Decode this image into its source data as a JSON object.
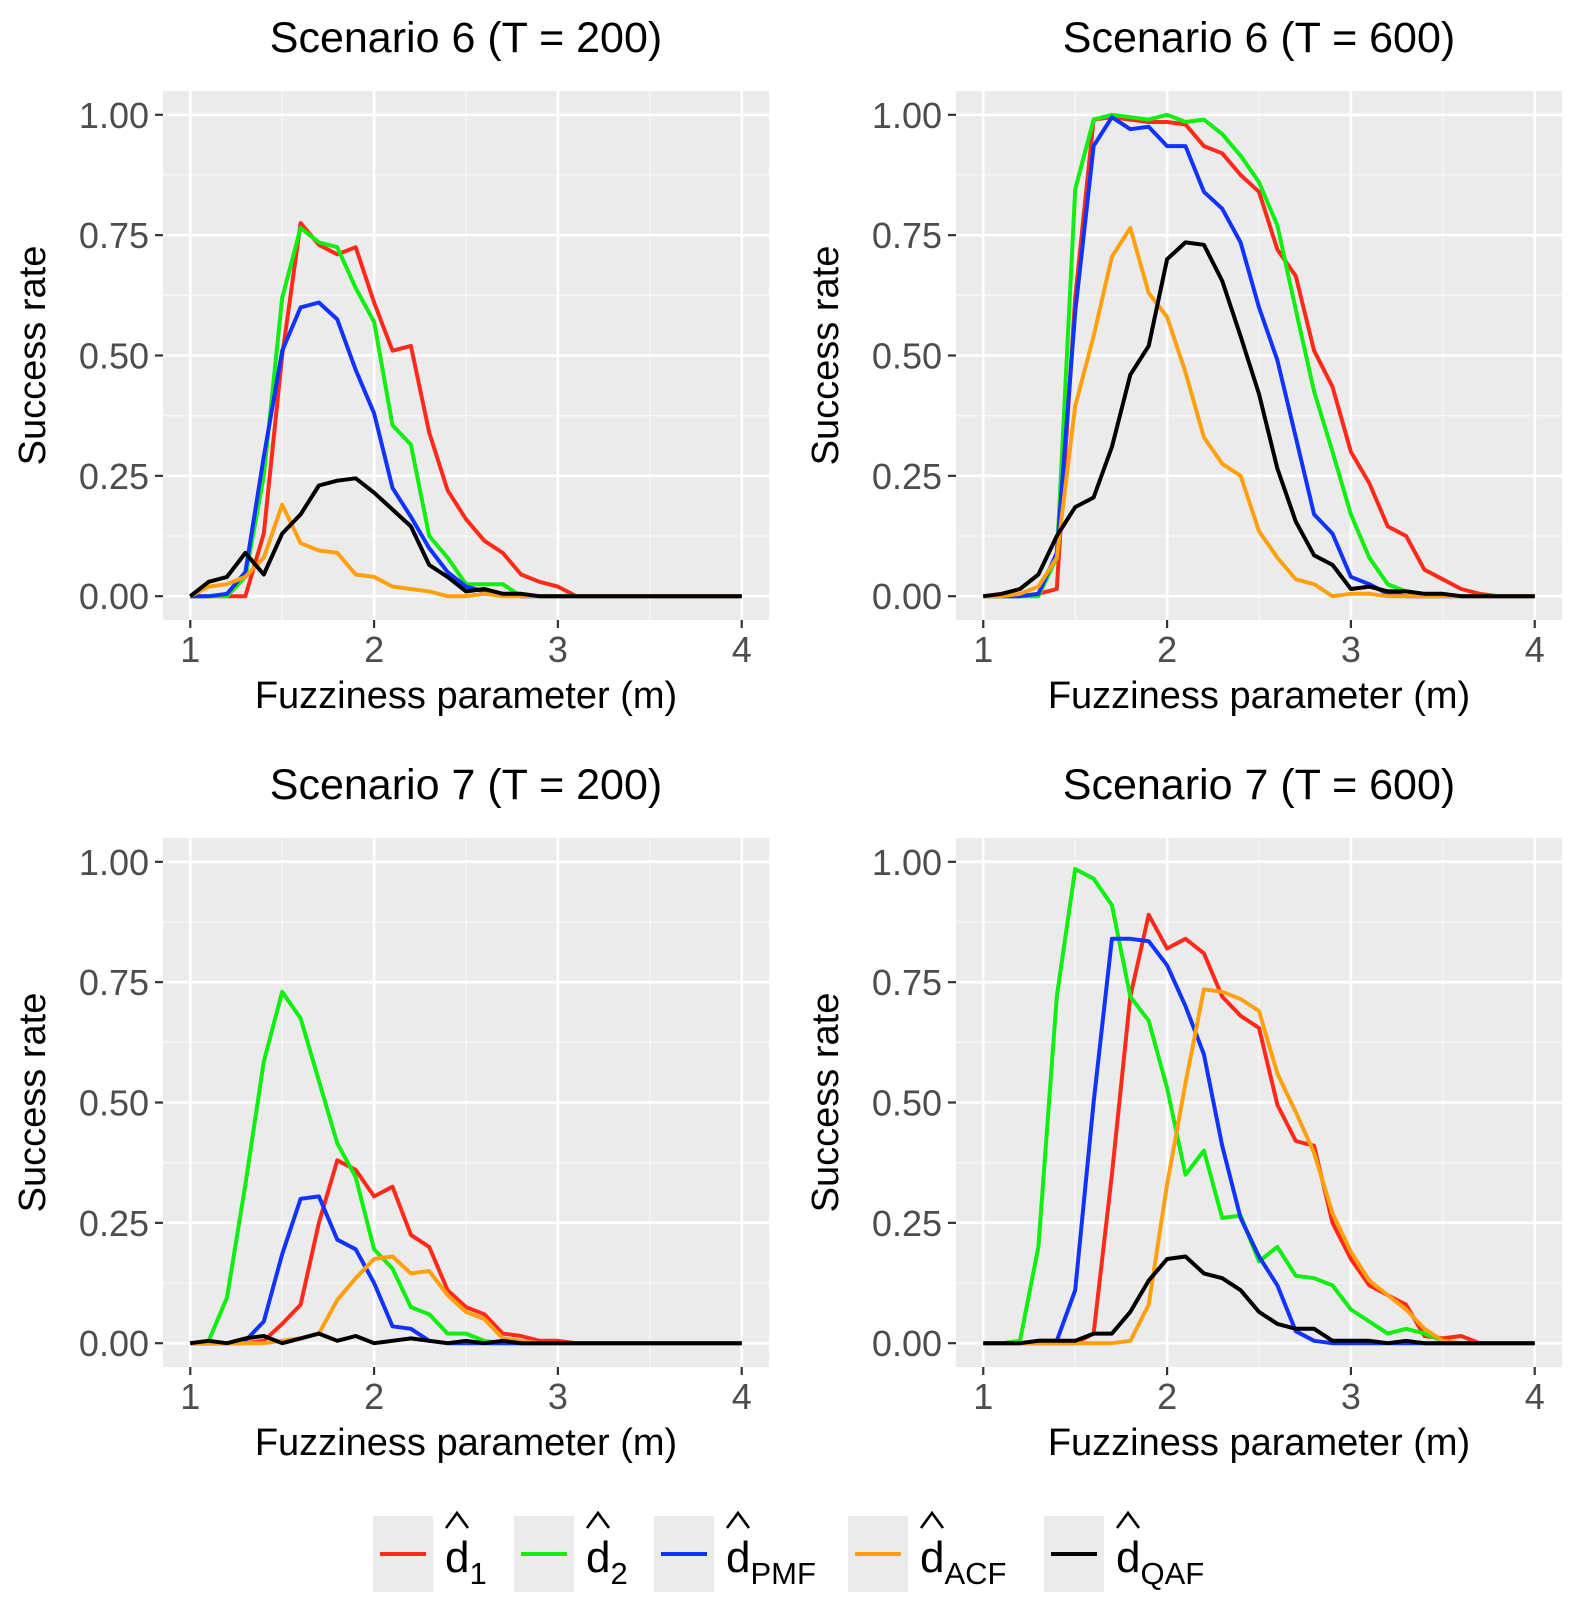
{
  "legend": {
    "entries": [
      {
        "key": "d1",
        "base": "d",
        "sub": "1",
        "color": "#FF2A1A"
      },
      {
        "key": "d2",
        "base": "d",
        "sub": "2",
        "color": "#11EE11"
      },
      {
        "key": "dPMF",
        "base": "d",
        "sub": "PMF",
        "color": "#1133FF"
      },
      {
        "key": "dACF",
        "base": "d",
        "sub": "ACF",
        "color": "#FFA010"
      },
      {
        "key": "dQAF",
        "base": "d",
        "sub": "QAF",
        "color": "#000000"
      }
    ]
  },
  "chart_data": [
    {
      "type": "line",
      "title": "Scenario 6 (T = 200)",
      "xlabel": "Fuzziness parameter (m)",
      "ylabel": "Success rate",
      "xlim": [
        1,
        4
      ],
      "ylim": [
        0,
        1
      ],
      "xticks": [
        "1",
        "2",
        "3",
        "4"
      ],
      "yticks": [
        "0.00",
        "0.25",
        "0.50",
        "0.75",
        "1.00"
      ],
      "x": [
        1.0,
        1.1,
        1.2,
        1.3,
        1.4,
        1.5,
        1.6,
        1.7,
        1.8,
        1.9,
        2.0,
        2.1,
        2.2,
        2.3,
        2.4,
        2.5,
        2.6,
        2.7,
        2.8,
        2.9,
        3.0,
        3.1,
        3.2,
        3.3,
        3.4,
        3.5,
        3.6,
        3.7,
        3.8,
        3.9,
        4.0
      ],
      "series": [
        {
          "name": "d1",
          "values": [
            0,
            0,
            0,
            0,
            0.13,
            0.5,
            0.775,
            0.73,
            0.71,
            0.725,
            0.61,
            0.51,
            0.52,
            0.34,
            0.22,
            0.16,
            0.115,
            0.09,
            0.045,
            0.03,
            0.02,
            0,
            0,
            0,
            0,
            0,
            0,
            0,
            0,
            0,
            0
          ]
        },
        {
          "name": "d2",
          "values": [
            0,
            0,
            0,
            0.04,
            0.25,
            0.62,
            0.765,
            0.735,
            0.725,
            0.64,
            0.57,
            0.355,
            0.315,
            0.125,
            0.08,
            0.025,
            0.025,
            0.025,
            0,
            0,
            0,
            0,
            0,
            0,
            0,
            0,
            0,
            0,
            0,
            0,
            0
          ]
        },
        {
          "name": "dPMF",
          "values": [
            0,
            0,
            0.005,
            0.05,
            0.29,
            0.51,
            0.6,
            0.61,
            0.575,
            0.47,
            0.38,
            0.225,
            0.165,
            0.1,
            0.05,
            0.02,
            0.01,
            0.005,
            0,
            0,
            0,
            0,
            0,
            0,
            0,
            0,
            0,
            0,
            0,
            0,
            0
          ]
        },
        {
          "name": "dACF",
          "values": [
            0,
            0.02,
            0.025,
            0.04,
            0.08,
            0.19,
            0.11,
            0.095,
            0.09,
            0.045,
            0.04,
            0.02,
            0.015,
            0.01,
            0,
            0,
            0.005,
            0,
            0,
            0,
            0,
            0,
            0,
            0,
            0,
            0,
            0,
            0,
            0,
            0,
            0
          ]
        },
        {
          "name": "dQAF",
          "values": [
            0,
            0.03,
            0.04,
            0.09,
            0.045,
            0.13,
            0.17,
            0.23,
            0.24,
            0.245,
            0.215,
            0.18,
            0.145,
            0.065,
            0.04,
            0.01,
            0.015,
            0.005,
            0.005,
            0,
            0,
            0,
            0,
            0,
            0,
            0,
            0,
            0,
            0,
            0,
            0
          ]
        }
      ]
    },
    {
      "type": "line",
      "title": "Scenario 6 (T = 600)",
      "xlabel": "Fuzziness parameter (m)",
      "ylabel": "Success rate",
      "xlim": [
        1,
        4
      ],
      "ylim": [
        0,
        1
      ],
      "xticks": [
        "1",
        "2",
        "3",
        "4"
      ],
      "yticks": [
        "0.00",
        "0.25",
        "0.50",
        "0.75",
        "1.00"
      ],
      "x": [
        1.0,
        1.1,
        1.2,
        1.3,
        1.4,
        1.5,
        1.6,
        1.7,
        1.8,
        1.9,
        2.0,
        2.1,
        2.2,
        2.3,
        2.4,
        2.5,
        2.6,
        2.7,
        2.8,
        2.9,
        3.0,
        3.1,
        3.2,
        3.3,
        3.4,
        3.5,
        3.6,
        3.7,
        3.8,
        3.9,
        4.0
      ],
      "series": [
        {
          "name": "d1",
          "values": [
            0,
            0,
            0,
            0.005,
            0.015,
            0.62,
            0.99,
            0.995,
            0.99,
            0.985,
            0.985,
            0.98,
            0.935,
            0.92,
            0.875,
            0.84,
            0.72,
            0.665,
            0.51,
            0.435,
            0.3,
            0.235,
            0.145,
            0.125,
            0.055,
            0.035,
            0.015,
            0.005,
            0,
            0,
            0
          ]
        },
        {
          "name": "d2",
          "values": [
            0,
            0,
            0,
            0,
            0.08,
            0.845,
            0.99,
            1.0,
            0.995,
            0.99,
            1.0,
            0.985,
            0.99,
            0.96,
            0.915,
            0.86,
            0.77,
            0.595,
            0.425,
            0.3,
            0.17,
            0.08,
            0.025,
            0.01,
            0.005,
            0,
            0,
            0,
            0,
            0,
            0
          ]
        },
        {
          "name": "dPMF",
          "values": [
            0,
            0,
            0,
            0.005,
            0.09,
            0.59,
            0.935,
            0.995,
            0.97,
            0.975,
            0.935,
            0.935,
            0.84,
            0.805,
            0.735,
            0.6,
            0.49,
            0.33,
            0.17,
            0.13,
            0.04,
            0.025,
            0.005,
            0,
            0,
            0,
            0,
            0,
            0,
            0,
            0
          ]
        },
        {
          "name": "dACF",
          "values": [
            0,
            0,
            0.005,
            0.02,
            0.08,
            0.395,
            0.54,
            0.705,
            0.765,
            0.63,
            0.58,
            0.465,
            0.33,
            0.275,
            0.25,
            0.135,
            0.08,
            0.035,
            0.025,
            0,
            0.005,
            0.005,
            0,
            0,
            0,
            0,
            0,
            0,
            0,
            0,
            0
          ]
        },
        {
          "name": "dQAF",
          "values": [
            0,
            0.005,
            0.015,
            0.045,
            0.125,
            0.185,
            0.205,
            0.31,
            0.46,
            0.52,
            0.7,
            0.735,
            0.73,
            0.655,
            0.54,
            0.42,
            0.265,
            0.155,
            0.085,
            0.065,
            0.015,
            0.02,
            0.01,
            0.01,
            0.005,
            0.005,
            0,
            0,
            0,
            0,
            0
          ]
        }
      ]
    },
    {
      "type": "line",
      "title": "Scenario 7 (T = 200)",
      "xlabel": "Fuzziness parameter (m)",
      "ylabel": "Success rate",
      "xlim": [
        1,
        4
      ],
      "ylim": [
        0,
        1
      ],
      "xticks": [
        "1",
        "2",
        "3",
        "4"
      ],
      "yticks": [
        "0.00",
        "0.25",
        "0.50",
        "0.75",
        "1.00"
      ],
      "x": [
        1.0,
        1.1,
        1.2,
        1.3,
        1.4,
        1.5,
        1.6,
        1.7,
        1.8,
        1.9,
        2.0,
        2.1,
        2.2,
        2.3,
        2.4,
        2.5,
        2.6,
        2.7,
        2.8,
        2.9,
        3.0,
        3.1,
        3.2,
        3.3,
        3.4,
        3.5,
        3.6,
        3.7,
        3.8,
        3.9,
        4.0
      ],
      "series": [
        {
          "name": "d1",
          "values": [
            0,
            0,
            0,
            0,
            0.005,
            0.04,
            0.08,
            0.25,
            0.38,
            0.36,
            0.305,
            0.325,
            0.225,
            0.2,
            0.11,
            0.075,
            0.06,
            0.02,
            0.015,
            0.005,
            0.005,
            0,
            0,
            0,
            0,
            0,
            0,
            0,
            0,
            0,
            0
          ]
        },
        {
          "name": "d2",
          "values": [
            0,
            0.005,
            0.095,
            0.33,
            0.585,
            0.73,
            0.675,
            0.545,
            0.415,
            0.345,
            0.195,
            0.155,
            0.075,
            0.06,
            0.02,
            0.02,
            0.005,
            0,
            0,
            0,
            0,
            0,
            0,
            0,
            0,
            0,
            0,
            0,
            0,
            0,
            0
          ]
        },
        {
          "name": "dPMF",
          "values": [
            0,
            0,
            0,
            0.005,
            0.045,
            0.185,
            0.3,
            0.305,
            0.215,
            0.195,
            0.125,
            0.035,
            0.03,
            0.005,
            0,
            0,
            0,
            0,
            0,
            0,
            0,
            0,
            0,
            0,
            0,
            0,
            0,
            0,
            0,
            0,
            0
          ]
        },
        {
          "name": "dACF",
          "values": [
            0,
            0,
            0,
            0,
            0,
            0.005,
            0.01,
            0.02,
            0.09,
            0.135,
            0.175,
            0.18,
            0.145,
            0.15,
            0.1,
            0.065,
            0.05,
            0.01,
            0.005,
            0,
            0,
            0,
            0,
            0,
            0,
            0,
            0,
            0,
            0,
            0,
            0
          ]
        },
        {
          "name": "dQAF",
          "values": [
            0,
            0.005,
            0,
            0.01,
            0.015,
            0,
            0.01,
            0.02,
            0.005,
            0.015,
            0,
            0.005,
            0.01,
            0.005,
            0,
            0.005,
            0,
            0.005,
            0,
            0,
            0,
            0,
            0,
            0,
            0,
            0,
            0,
            0,
            0,
            0,
            0
          ]
        }
      ]
    },
    {
      "type": "line",
      "title": "Scenario 7 (T = 600)",
      "xlabel": "Fuzziness parameter (m)",
      "ylabel": "Success rate",
      "xlim": [
        1,
        4
      ],
      "ylim": [
        0,
        1
      ],
      "xticks": [
        "1",
        "2",
        "3",
        "4"
      ],
      "yticks": [
        "0.00",
        "0.25",
        "0.50",
        "0.75",
        "1.00"
      ],
      "x": [
        1.0,
        1.1,
        1.2,
        1.3,
        1.4,
        1.5,
        1.6,
        1.7,
        1.8,
        1.9,
        2.0,
        2.1,
        2.2,
        2.3,
        2.4,
        2.5,
        2.6,
        2.7,
        2.8,
        2.9,
        3.0,
        3.1,
        3.2,
        3.3,
        3.4,
        3.5,
        3.6,
        3.7,
        3.8,
        3.9,
        4.0
      ],
      "series": [
        {
          "name": "d1",
          "values": [
            0,
            0,
            0,
            0,
            0,
            0,
            0.02,
            0.35,
            0.72,
            0.89,
            0.82,
            0.84,
            0.81,
            0.72,
            0.68,
            0.655,
            0.495,
            0.42,
            0.41,
            0.25,
            0.175,
            0.12,
            0.1,
            0.08,
            0.015,
            0.01,
            0.015,
            0,
            0,
            0,
            0
          ]
        },
        {
          "name": "d2",
          "values": [
            0,
            0,
            0.005,
            0.2,
            0.72,
            0.985,
            0.965,
            0.91,
            0.72,
            0.67,
            0.53,
            0.35,
            0.4,
            0.26,
            0.265,
            0.17,
            0.2,
            0.14,
            0.135,
            0.12,
            0.07,
            0.045,
            0.02,
            0.03,
            0.02,
            0.005,
            0,
            0,
            0,
            0,
            0
          ]
        },
        {
          "name": "dPMF",
          "values": [
            0,
            0,
            0,
            0.005,
            0.005,
            0.11,
            0.5,
            0.84,
            0.84,
            0.835,
            0.785,
            0.7,
            0.6,
            0.41,
            0.26,
            0.18,
            0.12,
            0.025,
            0.005,
            0,
            0,
            0,
            0,
            0,
            0,
            0,
            0,
            0,
            0,
            0,
            0
          ]
        },
        {
          "name": "dACF",
          "values": [
            0,
            0,
            0,
            0,
            0,
            0,
            0,
            0,
            0.005,
            0.08,
            0.33,
            0.54,
            0.735,
            0.73,
            0.715,
            0.69,
            0.56,
            0.48,
            0.395,
            0.27,
            0.19,
            0.13,
            0.1,
            0.07,
            0.03,
            0.005,
            0,
            0,
            0,
            0,
            0
          ]
        },
        {
          "name": "dQAF",
          "values": [
            0,
            0,
            0,
            0.005,
            0.005,
            0.005,
            0.02,
            0.02,
            0.065,
            0.13,
            0.175,
            0.18,
            0.145,
            0.135,
            0.11,
            0.065,
            0.04,
            0.03,
            0.03,
            0.005,
            0.005,
            0.005,
            0,
            0.005,
            0,
            0,
            0,
            0,
            0,
            0,
            0
          ]
        }
      ]
    }
  ]
}
